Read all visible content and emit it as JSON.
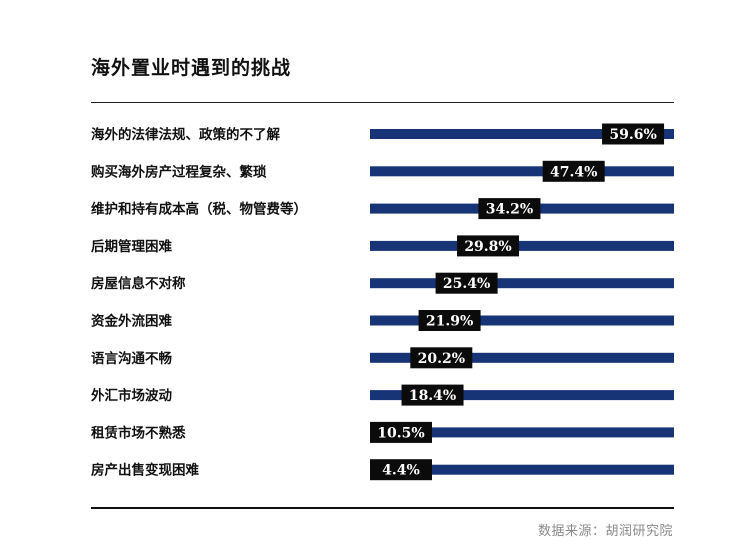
{
  "title": "海外置业时遇到的挑战",
  "source": "数据来源：胡润研究院",
  "colors": {
    "bar": "#173476",
    "label_bg": "#0b0b0b",
    "label_text": "#ffffff"
  },
  "chart_data": {
    "type": "bar",
    "orientation": "horizontal",
    "unit": "%",
    "categories": [
      "海外的法律法规、政策的不了解",
      "购买海外房产过程复杂、繁琐",
      "维护和持有成本高（税、物管费等）",
      "后期管理困难",
      "房屋信息不对称",
      "资金外流困难",
      "语言沟通不畅",
      "外汇市场波动",
      "租赁市场不熟悉",
      "房产出售变现困难"
    ],
    "values": [
      59.6,
      47.4,
      34.2,
      29.8,
      25.4,
      21.9,
      20.2,
      18.4,
      10.5,
      4.4
    ],
    "value_labels": [
      "59.6%",
      "47.4%",
      "34.2%",
      "29.8%",
      "25.4%",
      "21.9%",
      "20.2%",
      "18.4%",
      "10.5%",
      "4.4%"
    ],
    "xlim": [
      0,
      60
    ],
    "grid": false,
    "legend": "none"
  }
}
